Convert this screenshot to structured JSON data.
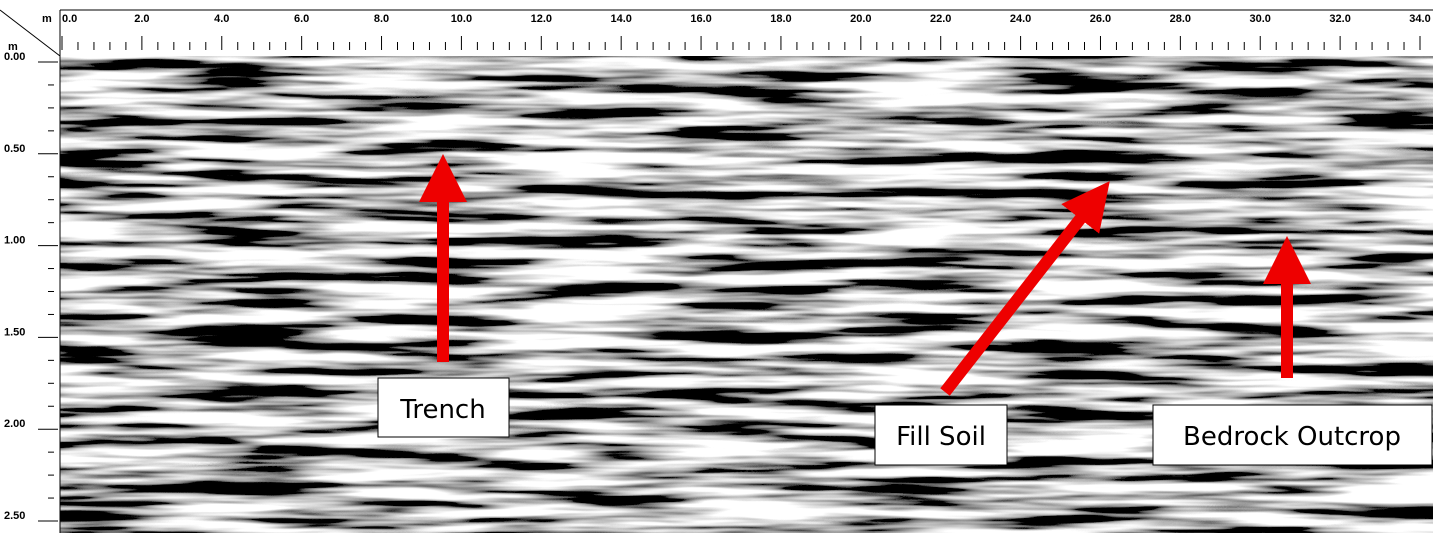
{
  "x_axis": {
    "unit": "m",
    "ticks": [
      "0.0",
      "2.0",
      "4.0",
      "6.0",
      "8.0",
      "10.0",
      "12.0",
      "14.0",
      "16.0",
      "18.0",
      "20.0",
      "22.0",
      "24.0",
      "26.0",
      "28.0",
      "30.0",
      "32.0",
      "34.0"
    ]
  },
  "y_axis": {
    "unit": "m",
    "ticks": [
      "0.00",
      "0.50",
      "1.00",
      "1.50",
      "2.00",
      "2.50"
    ]
  },
  "annotations": [
    "Trench",
    "Fill Soil",
    "Bedrock Outcrop"
  ]
}
